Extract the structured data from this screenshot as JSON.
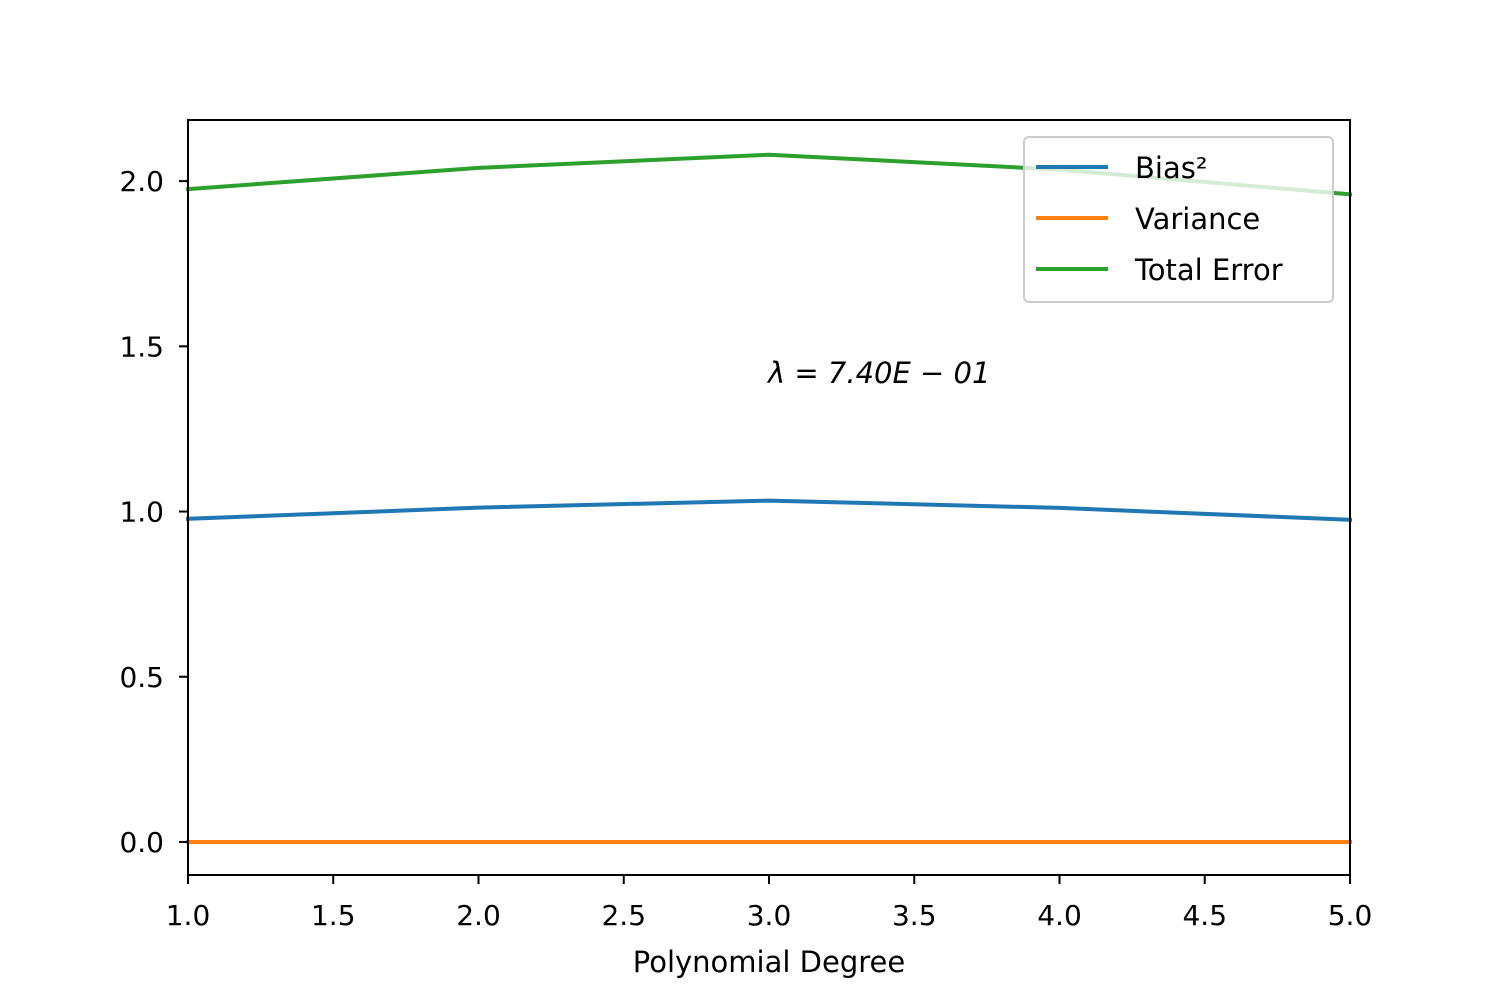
{
  "chart_data": {
    "type": "line",
    "title": "",
    "xlabel": "Polynomial Degree",
    "ylabel": "",
    "x": [
      1,
      2,
      3,
      4,
      5
    ],
    "xlim": [
      1.0,
      5.0
    ],
    "ylim": [
      -0.1,
      2.185
    ],
    "xticks": [
      "1.0",
      "1.5",
      "2.0",
      "2.5",
      "3.0",
      "3.5",
      "4.0",
      "4.5",
      "5.0"
    ],
    "yticks": [
      "0.0",
      "0.5",
      "1.0",
      "1.5",
      "2.0"
    ],
    "grid": false,
    "legend_position": "top-right",
    "annotation": "λ = 7.40E − 01",
    "series": [
      {
        "name": "Bias²",
        "color": "#1f77b4",
        "values": [
          0.978,
          1.012,
          1.033,
          1.011,
          0.975
        ]
      },
      {
        "name": "Variance",
        "color": "#ff7f0e",
        "values": [
          0.0,
          0.0,
          0.0,
          0.0,
          0.0
        ]
      },
      {
        "name": "Total Error",
        "color": "#2ca02c",
        "values": [
          1.976,
          2.04,
          2.08,
          2.035,
          1.96
        ]
      }
    ]
  }
}
